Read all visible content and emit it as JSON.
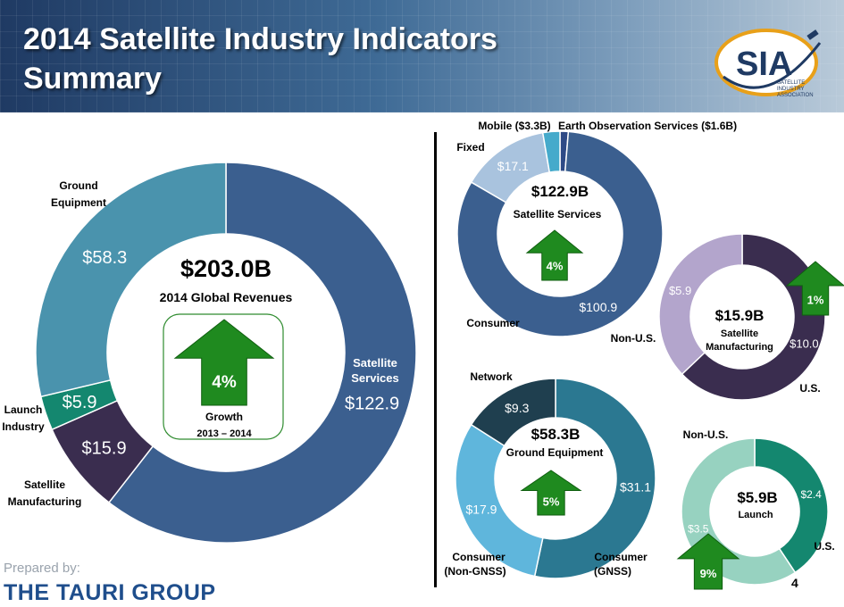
{
  "header": {
    "title_line1": "2014 Satellite Industry Indicators",
    "title_line2": "Summary",
    "logo_text": "SIA",
    "logo_sub1": "SATELLITE",
    "logo_sub2": "INDUSTRY",
    "logo_sub3": "ASSOCIATION"
  },
  "footer": {
    "prepared_by": "Prepared by:",
    "brand": "THE TAURI GROUP",
    "page_number": "4"
  },
  "chart_data": [
    {
      "type": "pie",
      "id": "global",
      "center_value": "$203.0B",
      "center_label": "2014 Global Revenues",
      "growth": {
        "value": "4%",
        "label": "Growth",
        "period": "2013 – 2014",
        "direction": "up"
      },
      "slices": [
        {
          "name": "Satellite Services",
          "value": 122.9,
          "label": "$122.9",
          "color": "#3b5f8f"
        },
        {
          "name": "Satellite Manufacturing",
          "value": 15.9,
          "label": "$15.9",
          "color": "#3a2d4f"
        },
        {
          "name": "Launch Industry",
          "value": 5.9,
          "label": "$5.9",
          "color": "#14876f"
        },
        {
          "name": "Ground Equipment",
          "value": 58.3,
          "label": "$58.3",
          "color": "#4a93ad"
        }
      ]
    },
    {
      "type": "pie",
      "id": "services",
      "center_value": "$122.9B",
      "center_label": "Satellite Services",
      "growth": {
        "value": "4%",
        "direction": "up"
      },
      "slices": [
        {
          "name": "Earth Observation Services ($1.6B)",
          "value": 1.6,
          "label": "",
          "color": "#2e4a86"
        },
        {
          "name": "Consumer",
          "value": 100.9,
          "label": "$100.9",
          "color": "#3b5f8f"
        },
        {
          "name": "Fixed",
          "value": 17.1,
          "label": "$17.1",
          "color": "#a9c3de"
        },
        {
          "name": "Mobile ($3.3B)",
          "value": 3.3,
          "label": "",
          "color": "#45aacb"
        }
      ]
    },
    {
      "type": "pie",
      "id": "manufacturing",
      "center_value": "$15.9B",
      "center_label": "Satellite Manufacturing",
      "growth": {
        "value": "1%",
        "direction": "up"
      },
      "slices": [
        {
          "name": "U.S.",
          "value": 10.0,
          "label": "$10.0",
          "color": "#3a2d4f"
        },
        {
          "name": "Non-U.S.",
          "value": 5.9,
          "label": "$5.9",
          "color": "#b3a5cc"
        }
      ]
    },
    {
      "type": "pie",
      "id": "ground",
      "center_value": "$58.3B",
      "center_label": "Ground Equipment",
      "growth": {
        "value": "5%",
        "direction": "up"
      },
      "slices": [
        {
          "name": "Consumer (GNSS)",
          "value": 31.1,
          "label": "$31.1",
          "color": "#2b7891"
        },
        {
          "name": "Consumer (Non-GNSS)",
          "value": 17.9,
          "label": "$17.9",
          "color": "#5fb6dc"
        },
        {
          "name": "Network",
          "value": 9.3,
          "label": "$9.3",
          "color": "#1f3f4f"
        }
      ]
    },
    {
      "type": "pie",
      "id": "launch",
      "center_value": "$5.9B",
      "center_label": "Launch",
      "growth": {
        "value": "9%",
        "direction": "up"
      },
      "slices": [
        {
          "name": "U.S.",
          "value": 2.4,
          "label": "$2.4",
          "color": "#14876f"
        },
        {
          "name": "Non-U.S.",
          "value": 3.5,
          "label": "$3.5",
          "color": "#97d2c0"
        }
      ]
    }
  ]
}
